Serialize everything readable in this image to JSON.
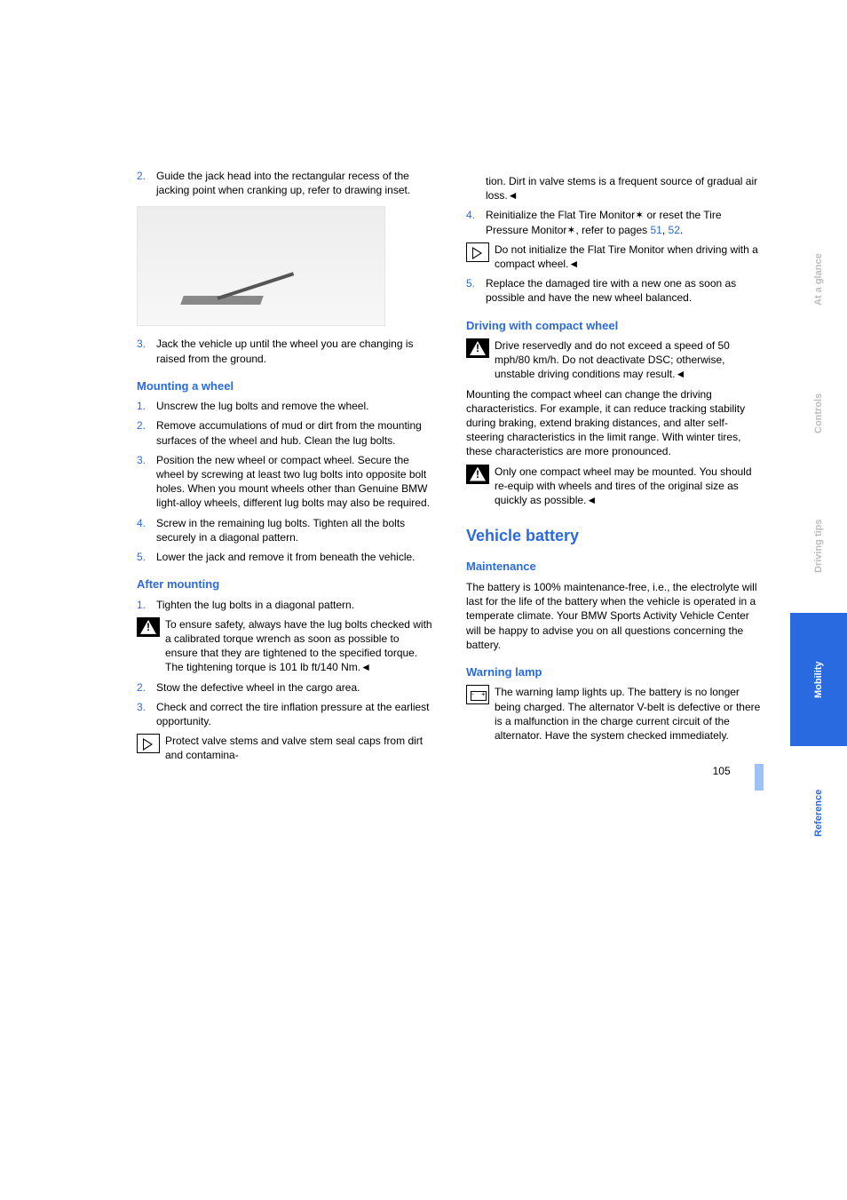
{
  "tabs": {
    "items": [
      "At a glance",
      "Controls",
      "Driving tips",
      "Mobility",
      "Reference"
    ],
    "active_index": 3,
    "active_bg": "#2a6ae0",
    "inactive_color": "#bdbdbd"
  },
  "left": {
    "step2": {
      "n": "2.",
      "t": "Guide the jack head into the rectangular recess of the jacking point when cranking up, refer to drawing inset."
    },
    "step3": {
      "n": "3.",
      "t": "Jack the vehicle up until the wheel you are changing is raised from the ground."
    },
    "mounting_heading": "Mounting a wheel",
    "m1": {
      "n": "1.",
      "t": "Unscrew the lug bolts and remove the wheel."
    },
    "m2": {
      "n": "2.",
      "t": "Remove accumulations of mud or dirt from the mounting surfaces of the wheel and hub. Clean the lug bolts."
    },
    "m3": {
      "n": "3.",
      "t": "Position the new wheel or compact wheel. Secure the wheel by screwing at least two lug bolts into opposite bolt holes. When you mount wheels other than Genuine BMW light-alloy wheels, different lug bolts may also be required."
    },
    "m4": {
      "n": "4.",
      "t": "Screw in the remaining lug bolts. Tighten all the bolts securely in a diagonal pattern."
    },
    "m5": {
      "n": "5.",
      "t": "Lower the jack and remove it from beneath the vehicle."
    },
    "after_heading": "After mounting",
    "a1": {
      "n": "1.",
      "t": "Tighten the lug bolts in a diagonal pattern."
    },
    "a1_warn": "To ensure safety, always have the lug bolts checked with a calibrated torque wrench as soon as possible to ensure that they are tightened to the specified torque. The tightening torque is 101 lb ft/140 Nm.◄",
    "a2": {
      "n": "2.",
      "t": "Stow the defective wheel in the cargo area."
    },
    "a3": {
      "n": "3.",
      "t": "Check and correct the tire inflation pressure at the earliest opportunity."
    },
    "a3_tip": "Protect valve stems and valve stem seal caps from dirt and contamina-"
  },
  "right": {
    "cont": "tion. Dirt in valve stems is a frequent source of gradual air loss.◄",
    "s4_n": "4.",
    "s4_a": "Reinitialize the Flat Tire Monitor",
    "s4_b": " or reset the Tire Pressure Monitor",
    "s4_c": ", refer to pages ",
    "s4_p1": "51",
    "s4_comma": ", ",
    "s4_p2": "52",
    "s4_end": ".",
    "s4_tip": "Do not initialize the Flat Tire Monitor when driving with a compact wheel.◄",
    "s5": {
      "n": "5.",
      "t": "Replace the damaged tire with a new one as soon as possible and have the new wheel balanced."
    },
    "drive_heading": "Driving with compact wheel",
    "drive_warn": "Drive reservedly and do not exceed a speed of 50 mph/80 km/h. Do not deactivate DSC; otherwise, unstable driving conditions may result.◄",
    "drive_p": "Mounting the compact wheel can change the driving characteristics. For example, it can reduce tracking stability during braking, extend braking distances, and alter self-steering characteristics in the limit range. With winter tires, these characteristics are more pronounced.",
    "drive_warn2": "Only one compact wheel may be mounted. You should re-equip with wheels and tires of the original size as quickly as possible.◄",
    "battery_h1": "Vehicle battery",
    "maint_h2": "Maintenance",
    "maint_p": "The battery is 100% maintenance-free, i.e., the electrolyte will last for the life of the battery when the vehicle is operated in a temperate climate. Your BMW Sports Activity Vehicle Center will be happy to advise you on all questions concerning the battery.",
    "warn_h2": "Warning lamp",
    "warn_p": "The warning lamp lights up. The battery is no longer being charged. The alternator V-belt is defective or there is a malfunction in the charge current circuit of the alternator. Have the system checked immediately."
  },
  "page_number": "105",
  "star": "✶"
}
